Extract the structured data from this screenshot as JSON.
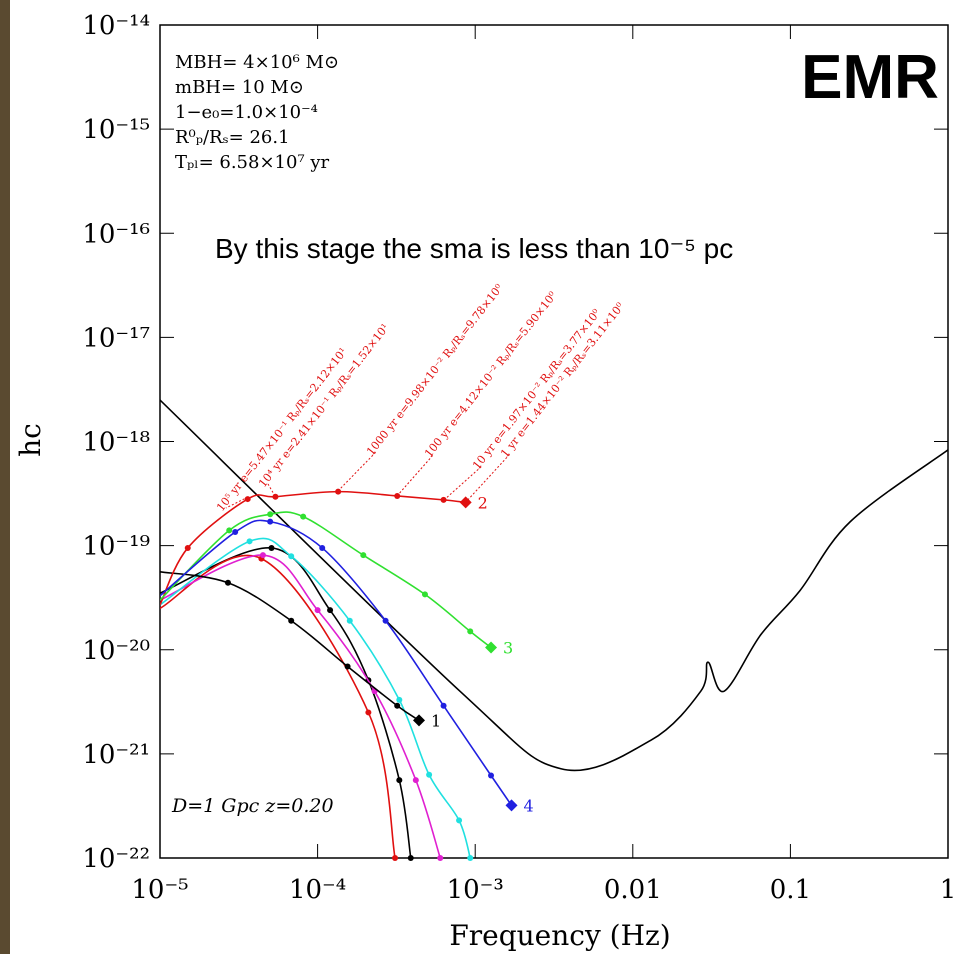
{
  "chart_data": {
    "type": "line",
    "xlabel": "Frequency (Hz)",
    "ylabel": "hc",
    "xscale": "log",
    "yscale": "log",
    "xlim": [
      1e-05,
      1
    ],
    "ylim": [
      1e-22,
      1e-14
    ],
    "xticks": [
      {
        "value": 1e-05,
        "label": "10⁻⁵"
      },
      {
        "value": 0.0001,
        "label": "10⁻⁴"
      },
      {
        "value": 0.001,
        "label": "10⁻³"
      },
      0.01,
      0.1,
      1
    ],
    "yticks": [
      {
        "value": 1e-22,
        "label": "10⁻²²"
      },
      {
        "value": 1e-21,
        "label": "10⁻²¹"
      },
      {
        "value": 1e-20,
        "label": "10⁻²⁰"
      },
      {
        "value": 1e-19,
        "label": "10⁻¹⁹"
      },
      {
        "value": 1e-18,
        "label": "10⁻¹⁸"
      },
      {
        "value": 1e-17,
        "label": "10⁻¹⁷"
      },
      {
        "value": 1e-16,
        "label": "10⁻¹⁶"
      },
      {
        "value": 1e-15,
        "label": "10⁻¹⁵"
      },
      {
        "value": 1e-14,
        "label": "10⁻¹⁴"
      }
    ],
    "series": [
      {
        "color": "#000000",
        "marker": "none",
        "x": [
          1e-05,
          0.0008,
          0.0035,
          0.013,
          0.027,
          0.03,
          0.038,
          0.065,
          0.115,
          0.24,
          1
        ],
        "values": [
          2.5e-18,
          4e-21,
          7.2e-22,
          1.35e-21,
          4e-21,
          7.6e-21,
          4e-21,
          1.4e-20,
          3.7e-20,
          1.7e-19,
          8.3e-19
        ]
      },
      {
        "color": "#000000",
        "marker": "dot",
        "x": [
          1e-05,
          5.1e-05,
          0.00012,
          0.00021,
          0.00033,
          0.00039
        ],
        "values": [
          3.5e-20,
          9.5e-20,
          2.4e-20,
          5.1e-21,
          5.6e-22,
          1e-22
        ]
      },
      {
        "color": "#e01010",
        "marker": "dot",
        "x": [
          1e-05,
          4.4e-05,
          0.00021,
          0.00031
        ],
        "values": [
          2.5e-20,
          7.5e-20,
          2.5e-21,
          1e-22
        ]
      },
      {
        "color": "#e020d0",
        "marker": "dot",
        "x": [
          1e-05,
          4.5e-05,
          0.0001,
          0.00023,
          0.00042,
          0.0006
        ],
        "values": [
          3e-20,
          8.1e-20,
          2.4e-20,
          4e-21,
          5.6e-22,
          1e-22
        ]
      },
      {
        "color": "#20e0e0",
        "marker": "dot",
        "x": [
          1e-05,
          3.7e-05,
          6.8e-05,
          0.00016,
          0.00033,
          0.00051,
          0.00079,
          0.00093
        ],
        "values": [
          2.7e-20,
          1.1e-19,
          7.9e-20,
          1.9e-20,
          3.3e-21,
          6.3e-22,
          2.3e-22,
          1e-22
        ]
      },
      {
        "name": "1",
        "color": "#000000",
        "marker": "diamond",
        "x": [
          1e-05,
          2.7e-05,
          6.8e-05,
          0.000155,
          0.00032,
          0.00044
        ],
        "values": [
          5.6e-20,
          4.4e-20,
          1.9e-20,
          6.9e-21,
          2.9e-21,
          2.1e-21
        ]
      },
      {
        "name": "2",
        "color": "#e01010",
        "marker": "diamond",
        "x": [
          1e-05,
          1.5e-05,
          3.6e-05,
          5.4e-05,
          0.000135,
          0.00032,
          0.00063,
          0.00087
        ],
        "values": [
          2.7e-20,
          9.5e-20,
          2.8e-19,
          2.95e-19,
          3.3e-19,
          3e-19,
          2.75e-19,
          2.6e-19
        ]
      },
      {
        "name": "3",
        "color": "#30e030",
        "marker": "diamond",
        "x": [
          1e-05,
          2.75e-05,
          5e-05,
          8.1e-05,
          0.000195,
          0.00048,
          0.00093,
          0.00126
        ],
        "values": [
          3e-20,
          1.4e-19,
          2e-19,
          1.9e-19,
          8.1e-20,
          3.4e-20,
          1.5e-20,
          1.05e-20
        ]
      },
      {
        "name": "4",
        "color": "#2020e0",
        "marker": "diamond",
        "x": [
          1e-05,
          3e-05,
          5e-05,
          0.000107,
          0.00027,
          0.00063,
          0.00126,
          0.0017
        ],
        "values": [
          3.3e-20,
          1.35e-19,
          1.7e-19,
          9.5e-20,
          1.9e-20,
          2.9e-21,
          6.2e-22,
          3.2e-22
        ]
      }
    ],
    "parameters": [
      "MBH= 4×10⁶ M⊙",
      "mBH= 10 M⊙",
      "1−e₀=1.0×10⁻⁴",
      "R⁰ₚ/Rₛ= 26.1",
      "Tₚₗ= 6.58×10⁷ yr"
    ],
    "stage_labels": [
      "10⁵ yr e=5.47×10⁻¹ Rₚ/Rₛ=2.12×10¹",
      "10⁴ yr e=2.41×10⁻¹ Rₚ/Rₛ=1.52×10¹",
      "1000 yr e=9.98×10⁻² Rₚ/Rₛ=9.78×10⁰",
      "100 yr e=4.12×10⁻² Rₚ/Rₛ=5.90×10⁰",
      "10 yr e=1.97×10⁻² Rₚ/Rₛ=3.77×10⁰",
      "1 yr e=1.44×10⁻² Rₚ/Rₛ=3.11×10⁰"
    ],
    "note": "By this stage the sma is less than 10⁻⁵ pc",
    "source": "D=1 Gpc z=0.20",
    "badge": "EMR"
  }
}
